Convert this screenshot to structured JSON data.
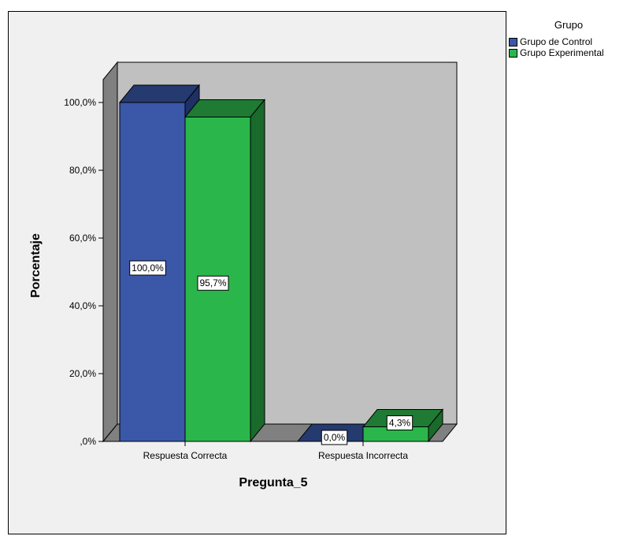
{
  "chart_data": {
    "type": "bar",
    "title": "",
    "xlabel": "Pregunta_5",
    "ylabel": "Porcentaje",
    "categories": [
      "Respuesta Correcta",
      "Respuesta Incorrecta"
    ],
    "series": [
      {
        "name": "Grupo de Control",
        "values": [
          100.0,
          0.0
        ],
        "labels": [
          "100,0%",
          "0,0%"
        ],
        "color": "#3b57a8",
        "top_color": "#253a6e",
        "side_color": "#1e3064"
      },
      {
        "name": "Grupo Experimental",
        "values": [
          95.7,
          4.3
        ],
        "labels": [
          "95,7%",
          "4,3%"
        ],
        "color": "#2bb64b",
        "top_color": "#1f7a33",
        "side_color": "#1a6a2c"
      }
    ],
    "ylim": [
      0,
      100
    ],
    "yticks": [
      0,
      20,
      40,
      60,
      80,
      100
    ],
    "ytick_labels": [
      ",0%",
      "20,0%",
      "40,0%",
      "60,0%",
      "80,0%",
      "100,0%"
    ],
    "legend_title": "Grupo",
    "legend_position": "top-right",
    "grid": false,
    "three_d": true,
    "wall_color": "#c0c0c0",
    "floor_color": "#808080"
  }
}
